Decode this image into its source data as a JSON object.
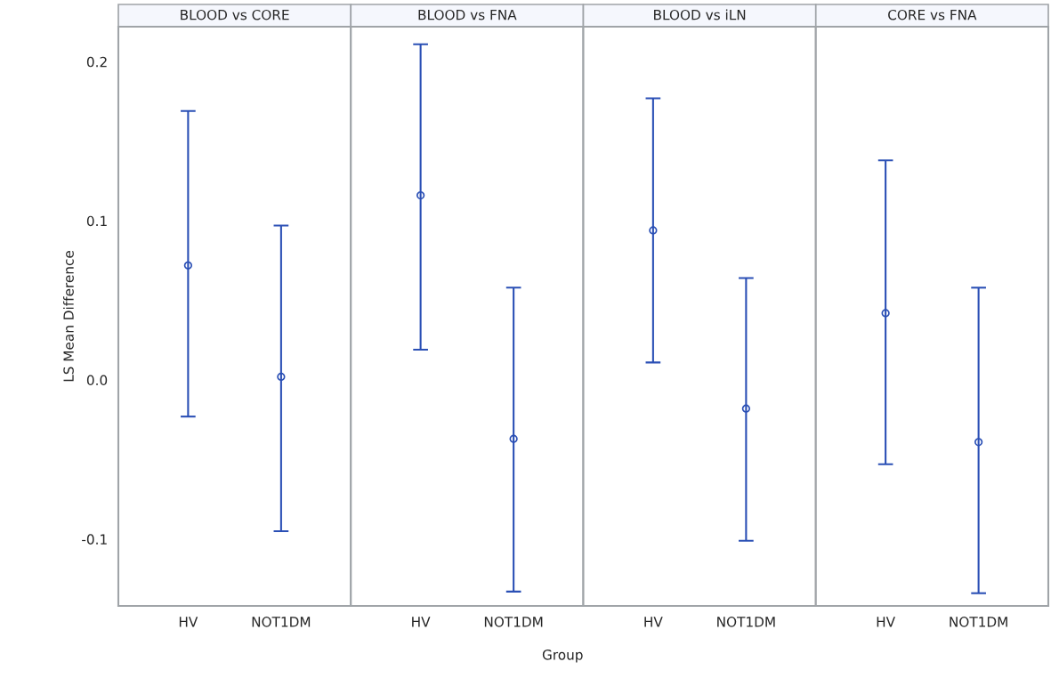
{
  "chart_data": [
    {
      "type": "scatter",
      "title": "BLOOD vs CORE",
      "ylabel": "LS Mean Difference",
      "categories": [
        "HV",
        "NOT1DM"
      ],
      "color": "#2a4fb5",
      "marker": "circle",
      "grid": false,
      "legend": false,
      "ylim": [
        -0.142,
        0.222
      ],
      "yticks": [
        -0.1,
        {
          "value": 0,
          "label": "0.0"
        },
        0.1,
        0.2
      ],
      "values": [
        0.072,
        0.002
      ],
      "errors": [
        [
          -0.023,
          0.169
        ],
        [
          -0.095,
          0.097
        ]
      ]
    },
    {
      "type": "scatter",
      "title": "BLOOD vs FNA",
      "xlabel": "Group",
      "categories": [
        "HV",
        "NOT1DM"
      ],
      "color": "#2a4fb5",
      "marker": "circle",
      "grid": false,
      "legend": false,
      "ylim": [
        -0.142,
        0.222
      ],
      "tick_labels": "x",
      "values": [
        0.116,
        -0.037
      ],
      "errors": [
        [
          0.019,
          0.211
        ],
        [
          -0.133,
          0.058
        ]
      ]
    },
    {
      "type": "scatter",
      "title": "BLOOD vs iLN",
      "categories": [
        "HV",
        "NOT1DM"
      ],
      "color": "#2a4fb5",
      "marker": "circle",
      "grid": false,
      "legend": false,
      "ylim": [
        -0.142,
        0.222
      ],
      "tick_labels": "x",
      "values": [
        0.094,
        -0.018
      ],
      "errors": [
        [
          0.011,
          0.177
        ],
        [
          -0.101,
          0.064
        ]
      ]
    },
    {
      "type": "scatter",
      "title": "CORE vs FNA",
      "categories": [
        "HV",
        "NOT1DM"
      ],
      "color": "#2a4fb5",
      "marker": "circle",
      "grid": false,
      "legend": false,
      "ylim": [
        -0.142,
        0.222
      ],
      "tick_labels": "x",
      "values": [
        0.042,
        -0.039
      ],
      "errors": [
        [
          -0.053,
          0.138
        ],
        [
          -0.134,
          0.058
        ]
      ]
    }
  ]
}
